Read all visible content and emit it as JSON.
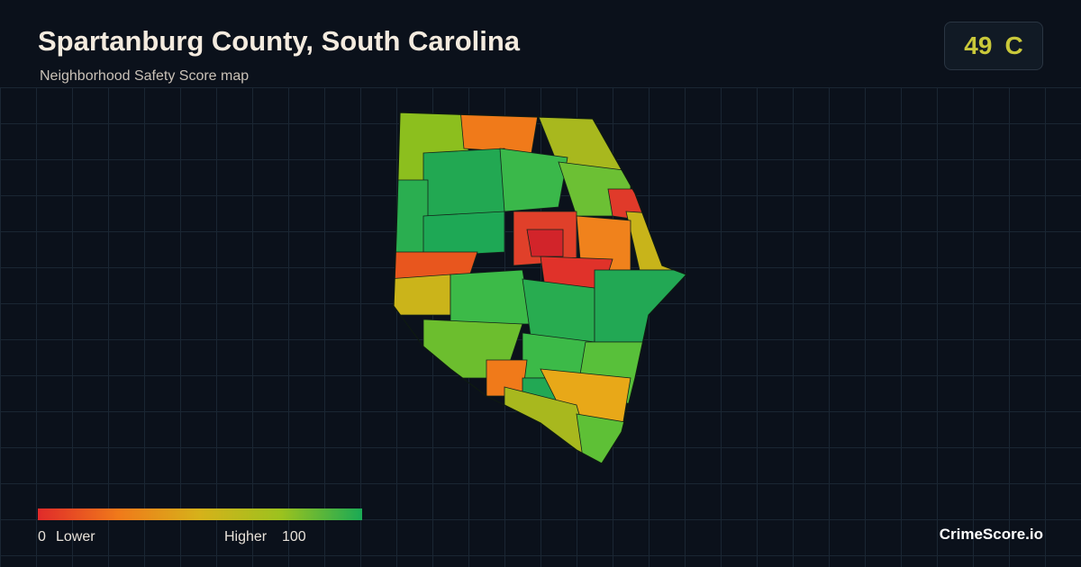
{
  "header": {
    "title": "Spartanburg County, South Carolina",
    "subtitle": "Neighborhood Safety Score map"
  },
  "score": {
    "value": 49,
    "grade": "C"
  },
  "legend": {
    "min": 0,
    "min_label": "Lower",
    "max_label": "Higher",
    "max": 100,
    "colors": [
      "#e02a2a",
      "#f07a1a",
      "#d6b21a",
      "#9cc21e",
      "#1aaa55"
    ]
  },
  "brand": "CrimeScore.io"
}
